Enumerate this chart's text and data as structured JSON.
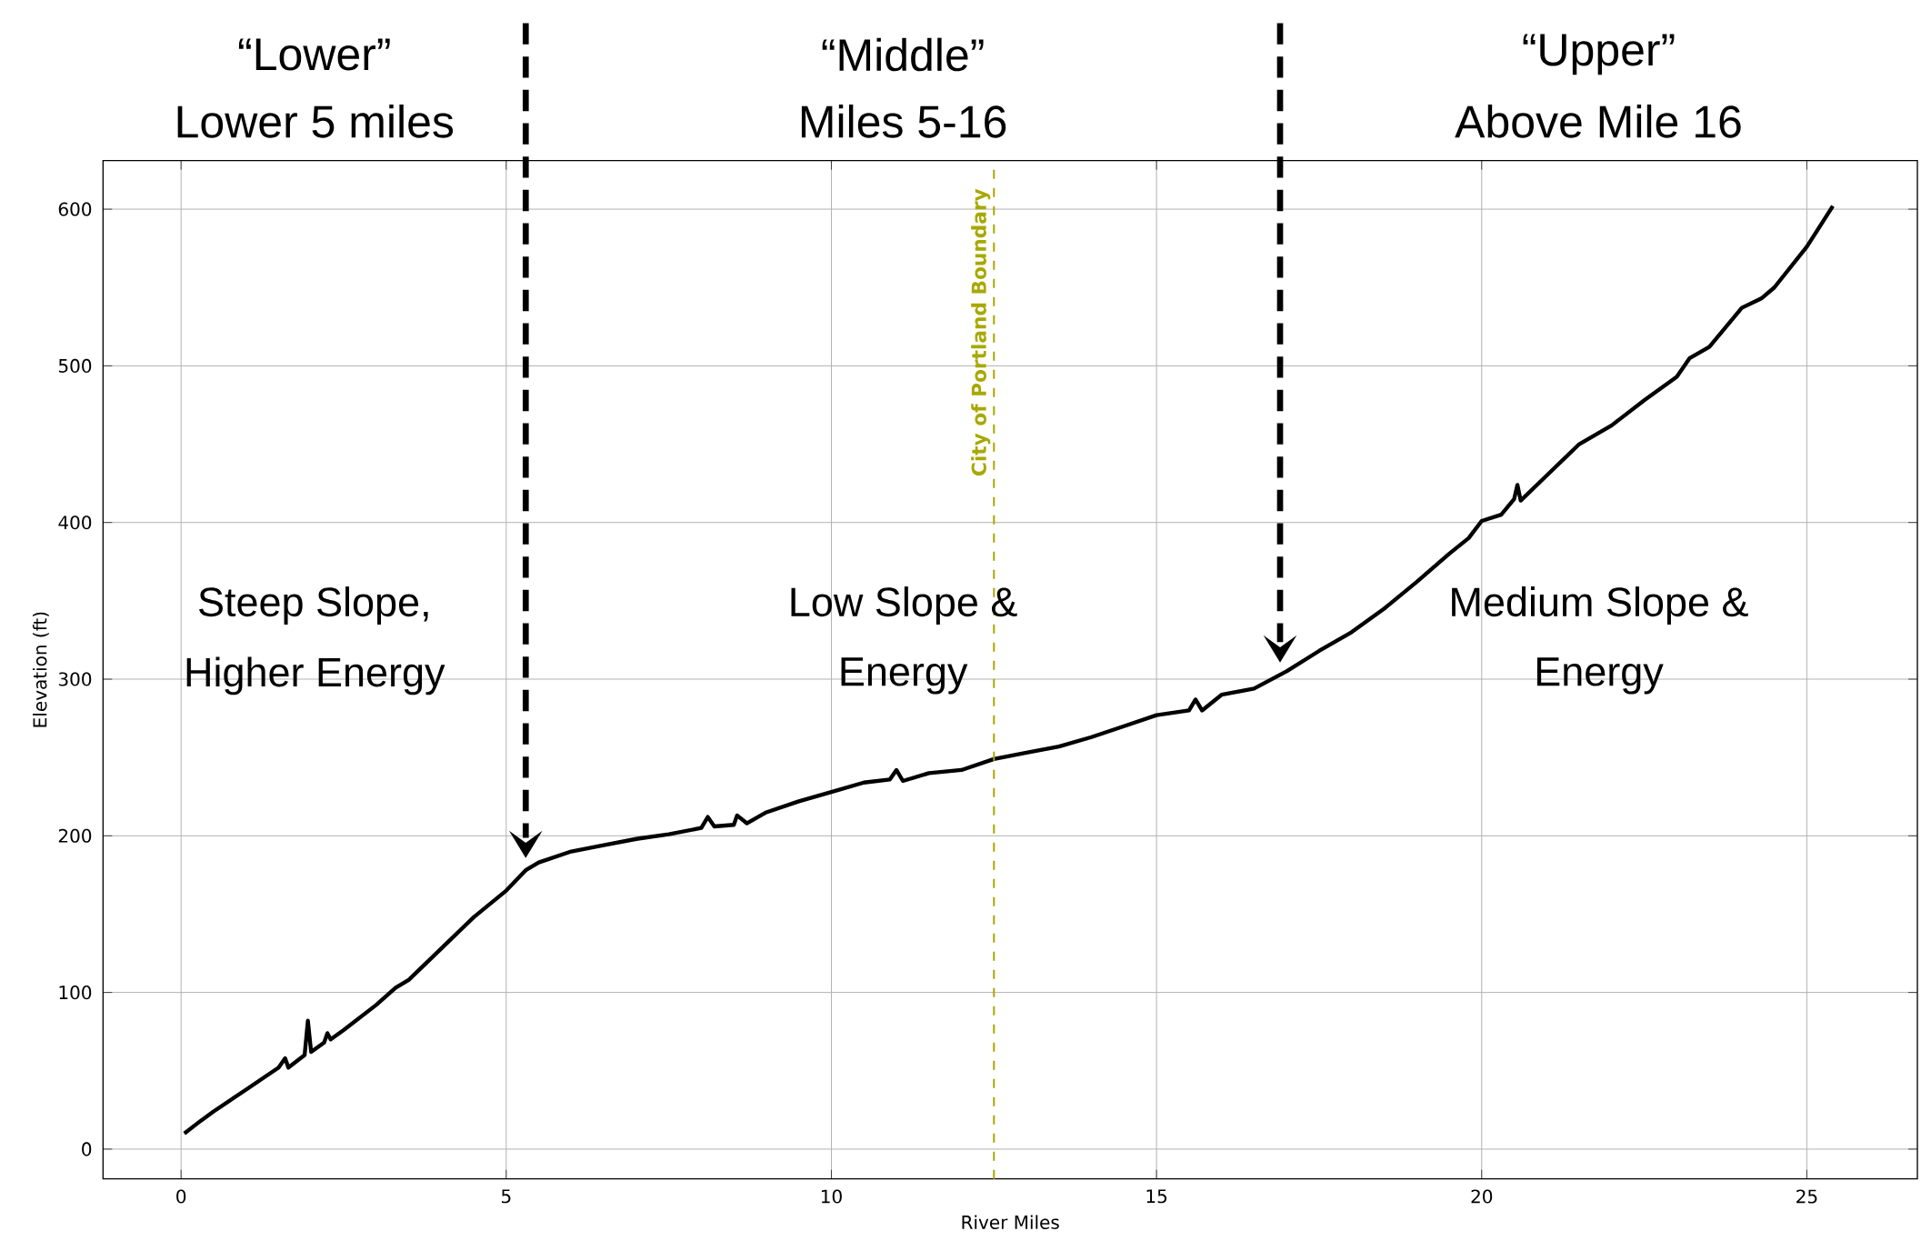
{
  "chart_data": {
    "type": "line",
    "xlabel": "River Miles",
    "ylabel": "Elevation (ft)",
    "xlim": [
      -1.2,
      26.7
    ],
    "ylim": [
      -19,
      631
    ],
    "xticks": [
      0,
      5,
      10,
      15,
      20,
      25
    ],
    "yticks": [
      0,
      100,
      200,
      300,
      400,
      500,
      600
    ],
    "grid": true,
    "series": [
      {
        "color": "#000000",
        "x": [
          0.05,
          0.3,
          0.5,
          1.0,
          1.5,
          1.6,
          1.65,
          1.9,
          1.95,
          2.0,
          2.2,
          2.25,
          2.3,
          2.5,
          3.0,
          3.3,
          3.5,
          4.0,
          4.5,
          5.0,
          5.3,
          5.5,
          6.0,
          6.5,
          7.0,
          7.5,
          8.0,
          8.1,
          8.2,
          8.5,
          8.55,
          8.7,
          9.0,
          9.5,
          10.0,
          10.5,
          10.9,
          11.0,
          11.1,
          11.5,
          12.0,
          12.5,
          13.0,
          13.5,
          14.0,
          14.5,
          15.0,
          15.5,
          15.6,
          15.7,
          16.0,
          16.5,
          17.0,
          17.5,
          18.0,
          18.5,
          19.0,
          19.5,
          19.8,
          20.0,
          20.3,
          20.5,
          20.55,
          20.6,
          21.0,
          21.5,
          22.0,
          22.5,
          23.0,
          23.2,
          23.5,
          24.0,
          24.3,
          24.5,
          25.0,
          25.4
        ],
        "values": [
          10,
          18,
          24,
          38,
          52,
          58,
          52,
          60,
          82,
          62,
          68,
          74,
          70,
          76,
          92,
          103,
          108,
          128,
          148,
          165,
          178,
          183,
          190,
          194,
          198,
          201,
          205,
          212,
          206,
          207,
          213,
          208,
          215,
          222,
          228,
          234,
          236,
          242,
          235,
          240,
          242,
          249,
          253,
          257,
          263,
          270,
          277,
          280,
          287,
          280,
          290,
          294,
          305,
          318,
          330,
          345,
          362,
          380,
          390,
          401,
          405,
          415,
          424,
          414,
          430,
          450,
          462,
          478,
          493,
          505,
          512,
          537,
          543,
          550,
          576,
          602
        ]
      }
    ],
    "ref_lines": [
      {
        "axis": "x",
        "value": 5.3,
        "color": "#000000",
        "line_style": "dashed"
      },
      {
        "axis": "x",
        "value": 16.9,
        "color": "#000000",
        "line_style": "dashed"
      },
      {
        "axis": "x",
        "value": 12.5,
        "label": "City of Portland Boundary",
        "color": "#a8a800",
        "line_style": "dashed"
      }
    ],
    "annotations": [
      "“Lower”",
      "Lower 5 miles",
      "Steep Slope,",
      "Higher Energy",
      "“Middle”",
      "Miles 5-16",
      "Low Slope &",
      "Energy",
      "“Upper”",
      "Above Mile 16",
      "Medium Slope &",
      "Energy"
    ]
  }
}
